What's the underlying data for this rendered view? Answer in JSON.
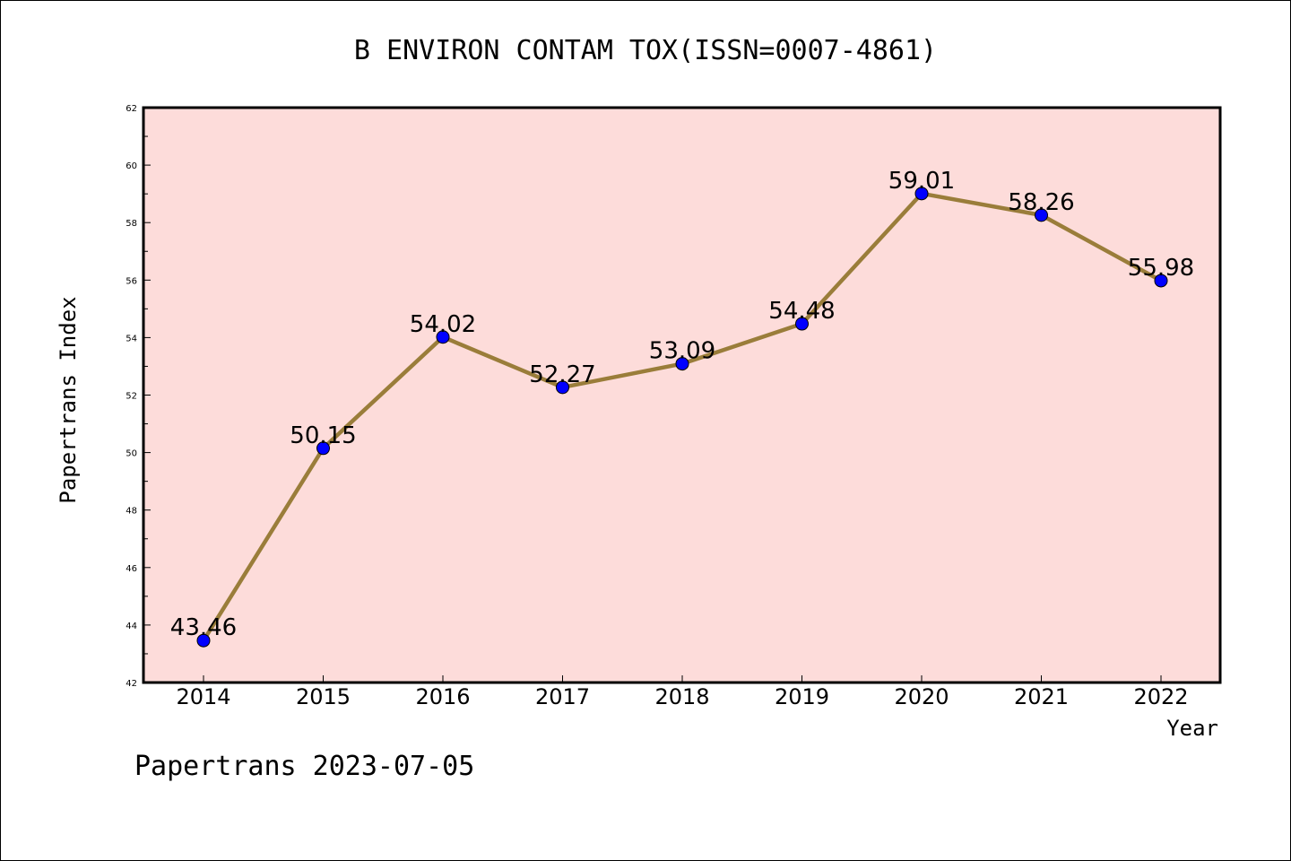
{
  "chart_data": {
    "type": "line",
    "title": "B ENVIRON CONTAM TOX(ISSN=0007-4861)",
    "xlabel": "Year",
    "ylabel": "Papertrans Index",
    "categories": [
      "2014",
      "2015",
      "2016",
      "2017",
      "2018",
      "2019",
      "2020",
      "2021",
      "2022"
    ],
    "series": [
      {
        "values": [
          43.46,
          50.15,
          54.02,
          52.27,
          53.09,
          54.48,
          59.01,
          58.26,
          55.98
        ],
        "labels": [
          "43.46",
          "50.15",
          "54.02",
          "52.27",
          "53.09",
          "54.48",
          "59.01",
          "58.26",
          "55.98"
        ],
        "line_color": "#9a7d3a",
        "marker_color": "#0000ff"
      }
    ],
    "ylim": [
      42,
      62
    ],
    "yticks": [
      "42",
      "44",
      "46",
      "48",
      "50",
      "52",
      "54",
      "56",
      "58",
      "60",
      "62"
    ],
    "grid": false,
    "plot_background": "#fddcda"
  },
  "footer": "Papertrans 2023-07-05"
}
